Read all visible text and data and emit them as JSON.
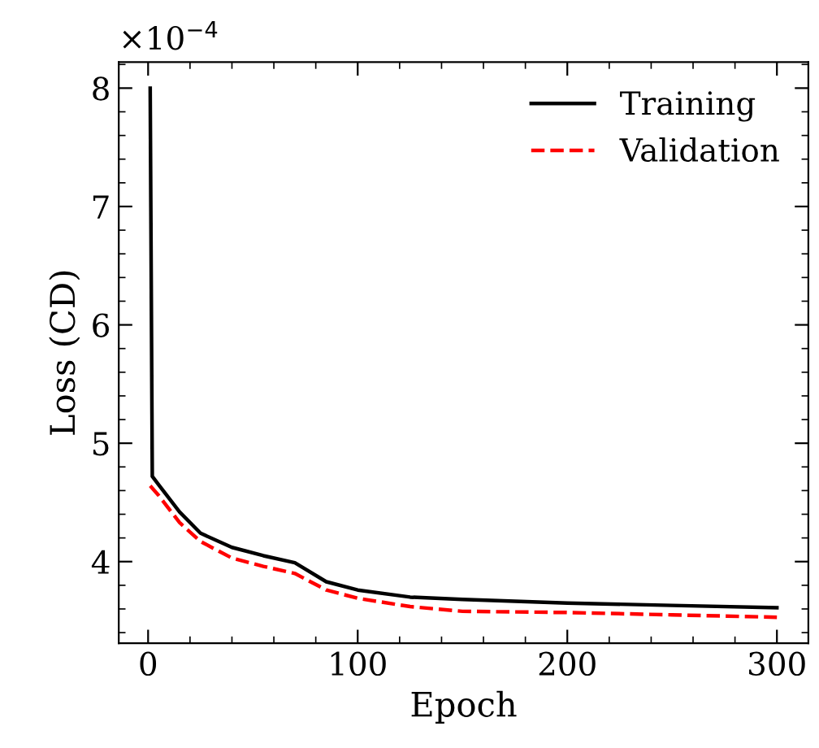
{
  "chart_data": {
    "type": "line",
    "xlabel": "Epoch",
    "ylabel": "Loss (CD)",
    "annotations": [
      "×10$^{−4}$"
    ],
    "x": [
      1,
      2,
      5,
      15,
      25,
      40,
      55,
      70,
      85,
      100,
      125,
      150,
      200,
      250,
      300
    ],
    "series": [
      {
        "name": "Training",
        "color": "#000000",
        "line_style": "solid",
        "values": [
          8.0,
          4.72,
          4.65,
          4.42,
          4.24,
          4.12,
          4.05,
          3.99,
          3.83,
          3.76,
          3.7,
          3.68,
          3.65,
          3.63,
          3.61
        ]
      },
      {
        "name": "Validation",
        "color": "#ff0000",
        "line_style": "dashed",
        "x": [
          1,
          5,
          15,
          25,
          40,
          55,
          70,
          85,
          100,
          125,
          150,
          200,
          250,
          300
        ],
        "values": [
          4.64,
          4.56,
          4.33,
          4.17,
          4.03,
          3.96,
          3.9,
          3.76,
          3.69,
          3.62,
          3.58,
          3.57,
          3.55,
          3.53
        ]
      }
    ],
    "xlim": [
      -14,
      315
    ],
    "xticks": [
      0,
      100,
      200,
      300
    ],
    "ylim": [
      3.31,
      8.22
    ],
    "yticks": [
      4,
      5,
      6,
      7,
      8
    ],
    "grid": false,
    "legend": "top right",
    "marker": "none"
  }
}
